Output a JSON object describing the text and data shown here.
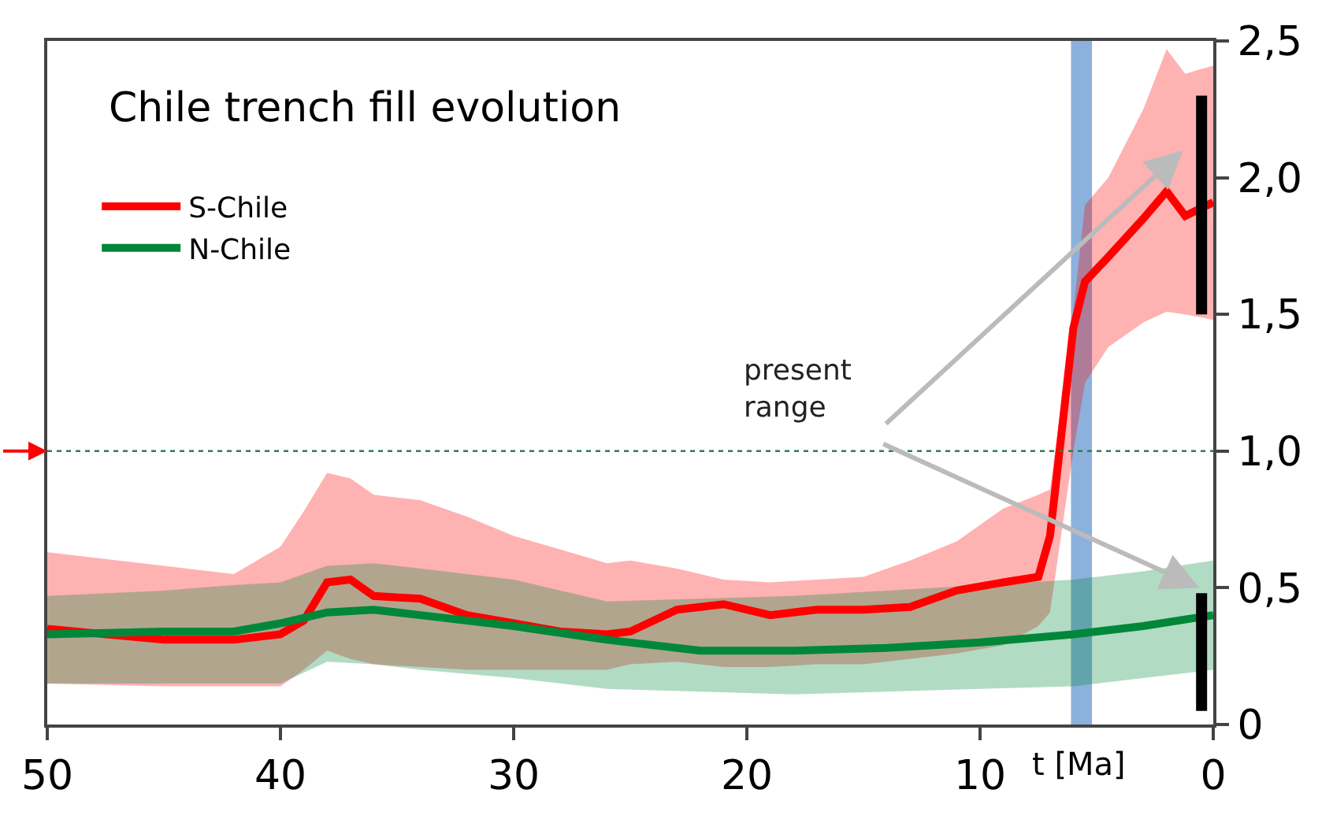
{
  "chart_data": {
    "type": "line",
    "title": "Chile trench fill evolution",
    "xlabel": "t [Ma]",
    "xlim": [
      50,
      0
    ],
    "xticks": [
      50,
      40,
      30,
      20,
      10,
      0
    ],
    "ylim": [
      0,
      2.5
    ],
    "yticks": [
      0,
      {
        "value": 0.5,
        "label": "0,5"
      },
      {
        "value": 1.0,
        "label": "1,0"
      },
      {
        "value": 1.5,
        "label": "1,5"
      },
      {
        "value": 2.0,
        "label": "2,0"
      },
      {
        "value": 2.5,
        "label": "2,5"
      }
    ],
    "grid": false,
    "legend": "top left",
    "marker": "none",
    "line_style": "solid",
    "series": [
      {
        "name": "S-Chile",
        "color": "#ff0000",
        "x": [
          50,
          45,
          42,
          40,
          39,
          38,
          37,
          36,
          34,
          32,
          30,
          28,
          26,
          25,
          23,
          21,
          19,
          17,
          15,
          13,
          11,
          9,
          7.5,
          7,
          6,
          5.5,
          4.5,
          3,
          2,
          1.2,
          0
        ],
        "values": [
          0.35,
          0.31,
          0.31,
          0.33,
          0.38,
          0.52,
          0.53,
          0.47,
          0.46,
          0.4,
          0.37,
          0.34,
          0.33,
          0.34,
          0.42,
          0.44,
          0.4,
          0.42,
          0.42,
          0.43,
          0.49,
          0.52,
          0.54,
          0.69,
          1.45,
          1.62,
          1.71,
          1.85,
          1.95,
          1.86,
          1.91
        ],
        "lower": [
          0.15,
          0.14,
          0.14,
          0.14,
          0.2,
          0.27,
          0.24,
          0.22,
          0.21,
          0.2,
          0.2,
          0.2,
          0.2,
          0.22,
          0.23,
          0.21,
          0.21,
          0.22,
          0.22,
          0.24,
          0.26,
          0.29,
          0.36,
          0.41,
          1.0,
          1.25,
          1.38,
          1.47,
          1.51,
          1.5,
          1.48
        ],
        "upper": [
          0.63,
          0.58,
          0.55,
          0.65,
          0.78,
          0.92,
          0.9,
          0.84,
          0.82,
          0.76,
          0.69,
          0.64,
          0.59,
          0.6,
          0.57,
          0.53,
          0.52,
          0.53,
          0.54,
          0.6,
          0.67,
          0.79,
          0.84,
          0.86,
          1.51,
          1.9,
          2.0,
          2.25,
          2.47,
          2.38,
          2.41
        ]
      },
      {
        "name": "N-Chile",
        "color": "#00873a",
        "x": [
          50,
          45,
          42,
          40,
          38,
          36,
          34,
          30,
          26,
          22,
          18,
          14,
          10,
          6,
          3,
          0
        ],
        "values": [
          0.33,
          0.34,
          0.34,
          0.37,
          0.41,
          0.42,
          0.4,
          0.36,
          0.31,
          0.27,
          0.27,
          0.28,
          0.3,
          0.33,
          0.36,
          0.4
        ],
        "lower": [
          0.15,
          0.15,
          0.15,
          0.15,
          0.23,
          0.22,
          0.2,
          0.17,
          0.13,
          0.12,
          0.11,
          0.12,
          0.13,
          0.14,
          0.17,
          0.2
        ],
        "upper": [
          0.47,
          0.49,
          0.51,
          0.52,
          0.58,
          0.59,
          0.57,
          0.53,
          0.45,
          0.46,
          0.47,
          0.49,
          0.51,
          0.53,
          0.56,
          0.6
        ]
      },
      {
        "color": "#000000",
        "x": [
          0.5,
          0.5
        ],
        "values": [
          1.5,
          2.3
        ]
      },
      {
        "color": "#000000",
        "x": [
          0.5,
          0.5
        ],
        "values": [
          0.05,
          0.48
        ]
      }
    ],
    "ref_lines": [
      {
        "axis": "y",
        "value": 1.0,
        "color": "#2e7d4f",
        "line_style": "dotted"
      }
    ],
    "bands": [
      {
        "axis": "x",
        "from": 6.1,
        "to": 5.2,
        "color": "#7fa9d8"
      }
    ],
    "annotations": [
      "present\nrange"
    ]
  }
}
